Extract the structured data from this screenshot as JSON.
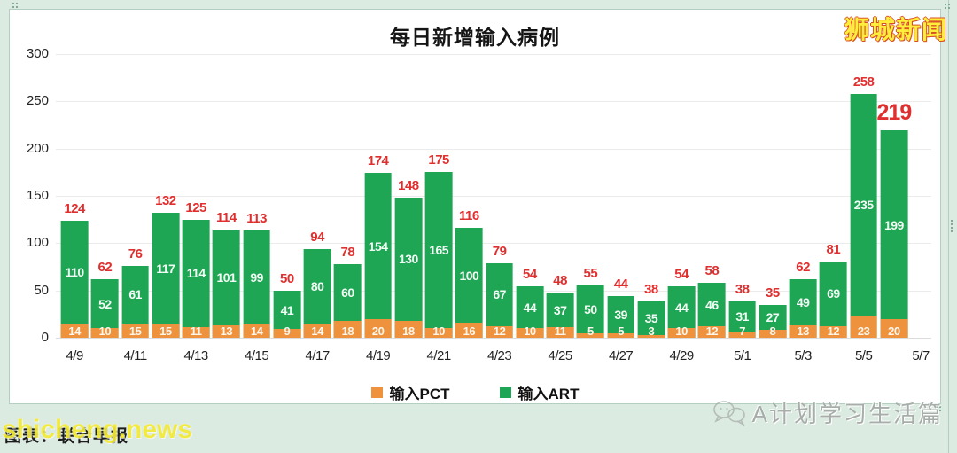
{
  "title": "每日新增输入病例",
  "logo_topright": "狮城新闻",
  "caption_bottomleft": "图表：联合早报",
  "watermark_bottomleft": "shicheng.news",
  "watermark_bottomright": "A计划学习生活篇",
  "colors": {
    "pct": "#ef923d",
    "art": "#1fa654",
    "total_label": "#e02f2f",
    "grid": "#ebebeb",
    "frame_bg": "#dcebe2"
  },
  "legend": [
    {
      "label": "输入PCT",
      "color": "#ef923d"
    },
    {
      "label": "输入ART",
      "color": "#1fa654"
    }
  ],
  "chart_data": {
    "type": "bar",
    "stacked": true,
    "title": "每日新增输入病例",
    "categories": [
      "4/9",
      "4/10",
      "4/11",
      "4/12",
      "4/13",
      "4/14",
      "4/15",
      "4/16",
      "4/17",
      "4/18",
      "4/19",
      "4/20",
      "4/21",
      "4/22",
      "4/23",
      "4/24",
      "4/25",
      "4/26",
      "4/27",
      "4/28",
      "4/29",
      "4/30",
      "5/1",
      "5/2",
      "5/3",
      "5/4",
      "5/5",
      "5/6"
    ],
    "series": [
      {
        "name": "输入PCT",
        "color": "#ef923d",
        "values": [
          14,
          10,
          15,
          15,
          11,
          13,
          14,
          9,
          14,
          18,
          20,
          18,
          10,
          16,
          12,
          10,
          11,
          5,
          5,
          3,
          10,
          12,
          7,
          8,
          13,
          12,
          23,
          20
        ]
      },
      {
        "name": "输入ART",
        "color": "#1fa654",
        "values": [
          110,
          52,
          61,
          117,
          114,
          101,
          99,
          41,
          80,
          60,
          154,
          130,
          165,
          100,
          67,
          44,
          37,
          50,
          39,
          35,
          44,
          46,
          31,
          27,
          49,
          69,
          235,
          199
        ]
      }
    ],
    "totals": [
      124,
      62,
      76,
      132,
      125,
      114,
      113,
      50,
      94,
      78,
      174,
      148,
      175,
      116,
      79,
      54,
      48,
      55,
      44,
      38,
      54,
      58,
      38,
      35,
      62,
      81,
      258,
      219
    ],
    "big_total_index": 27,
    "xticks": [
      "4/9",
      "4/11",
      "4/13",
      "4/15",
      "4/17",
      "4/19",
      "4/21",
      "4/23",
      "4/25",
      "4/27",
      "4/29",
      "5/1",
      "5/3",
      "5/5",
      "5/7"
    ],
    "yticks": [
      0,
      50,
      100,
      150,
      200,
      250,
      300
    ],
    "ylim": [
      0,
      300
    ],
    "grid": true,
    "legend_position": "bottom"
  }
}
